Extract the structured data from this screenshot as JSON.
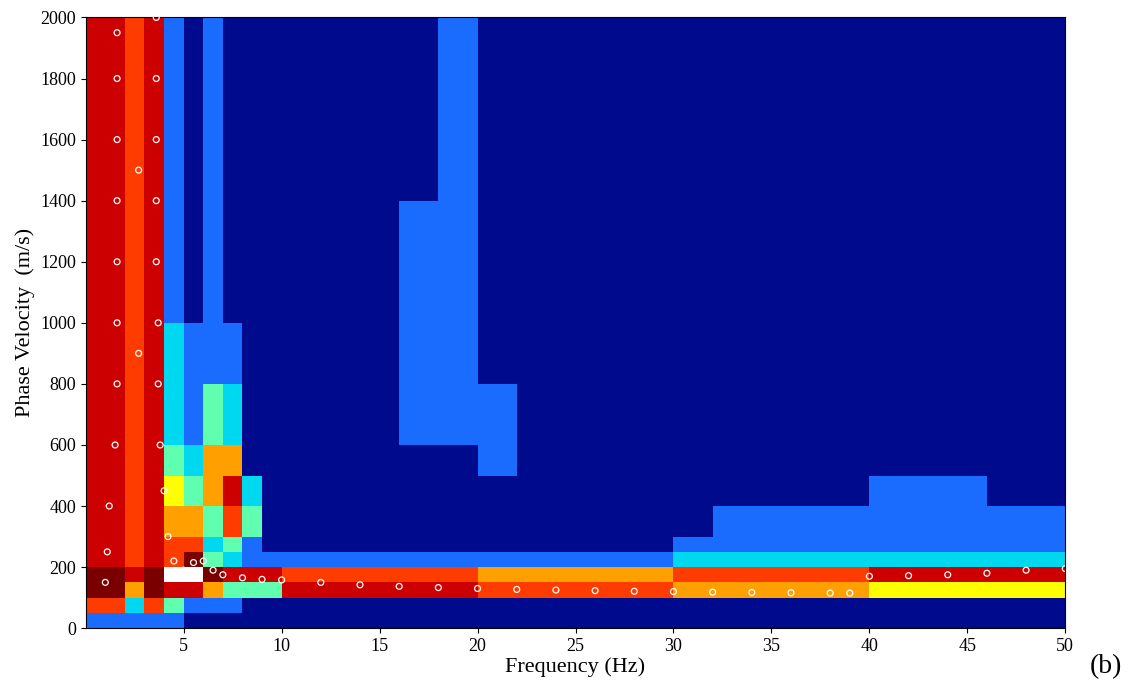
{
  "chart_data": {
    "type": "heatmap",
    "x_label": "Frequency (Hz)",
    "y_label": "Phase Velocity  (m/s)",
    "annotations": [
      {
        "text": "(b)"
      }
    ],
    "xlim": [
      0,
      50
    ],
    "ylim": [
      0,
      2000
    ],
    "xticks": [
      5,
      10,
      15,
      20,
      25,
      30,
      35,
      40,
      45,
      50
    ],
    "yticks": [
      0,
      200,
      400,
      600,
      800,
      1000,
      1200,
      1400,
      1600,
      1800,
      2000
    ],
    "grid": false,
    "heatmap": {
      "x_edges": [
        0,
        1,
        2,
        3,
        4,
        5,
        6,
        7,
        8,
        9,
        10,
        12,
        14,
        16,
        18,
        20,
        22,
        24,
        26,
        28,
        30,
        32,
        34,
        36,
        38,
        40,
        42,
        44,
        46,
        48,
        50
      ],
      "y_edges": [
        0,
        50,
        100,
        150,
        200,
        250,
        300,
        400,
        500,
        600,
        800,
        1000,
        1200,
        1400,
        1600,
        1800,
        2000
      ],
      "value_range": [
        0,
        9
      ],
      "cells": [
        [
          1,
          1,
          1,
          1,
          1,
          0,
          0,
          0,
          0,
          0,
          0,
          0,
          0,
          0,
          0,
          0,
          0,
          0,
          0,
          0,
          0,
          0,
          0,
          0,
          0,
          0,
          0,
          0,
          0,
          0
        ],
        [
          6,
          6,
          2,
          6,
          3,
          1,
          1,
          1,
          0,
          0,
          0,
          0,
          0,
          0,
          0,
          0,
          0,
          0,
          0,
          0,
          0,
          0,
          0,
          0,
          0,
          0,
          0,
          0,
          0,
          0
        ],
        [
          8,
          8,
          5,
          8,
          7,
          7,
          5,
          3,
          3,
          3,
          7,
          7,
          7,
          7,
          7,
          6,
          6,
          6,
          6,
          6,
          5,
          5,
          5,
          5,
          5,
          4,
          4,
          4,
          4,
          4
        ],
        [
          8,
          8,
          7,
          8,
          9,
          9,
          8,
          7,
          7,
          7,
          6,
          6,
          6,
          6,
          6,
          5,
          5,
          5,
          5,
          5,
          6,
          6,
          6,
          6,
          6,
          7,
          7,
          7,
          7,
          7
        ],
        [
          7,
          7,
          6,
          7,
          6,
          8,
          3,
          2,
          1,
          1,
          1,
          1,
          1,
          1,
          1,
          1,
          1,
          1,
          1,
          1,
          2,
          2,
          2,
          2,
          2,
          2,
          2,
          2,
          2,
          2
        ],
        [
          7,
          7,
          6,
          7,
          6,
          6,
          2,
          3,
          1,
          0,
          0,
          0,
          0,
          0,
          0,
          0,
          0,
          0,
          0,
          0,
          1,
          1,
          1,
          1,
          1,
          1,
          1,
          1,
          1,
          1
        ],
        [
          7,
          7,
          6,
          7,
          5,
          5,
          3,
          6,
          3,
          0,
          0,
          0,
          0,
          0,
          0,
          0,
          0,
          0,
          0,
          0,
          0,
          1,
          1,
          1,
          1,
          1,
          1,
          1,
          1,
          1
        ],
        [
          7,
          7,
          6,
          7,
          4,
          3,
          5,
          7,
          2,
          0,
          0,
          0,
          0,
          0,
          0,
          0,
          0,
          0,
          0,
          0,
          0,
          0,
          0,
          0,
          0,
          1,
          1,
          1,
          0,
          0
        ],
        [
          7,
          7,
          6,
          7,
          3,
          2,
          5,
          5,
          0,
          0,
          0,
          0,
          0,
          0,
          0,
          1,
          0,
          0,
          0,
          0,
          0,
          0,
          0,
          0,
          0,
          0,
          0,
          0,
          0,
          0
        ],
        [
          7,
          7,
          6,
          7,
          2,
          1,
          3,
          2,
          0,
          0,
          0,
          0,
          0,
          1,
          1,
          1,
          0,
          0,
          0,
          0,
          0,
          0,
          0,
          0,
          0,
          0,
          0,
          0,
          0,
          0
        ],
        [
          7,
          7,
          6,
          7,
          2,
          1,
          1,
          1,
          0,
          0,
          0,
          0,
          0,
          1,
          1,
          0,
          0,
          0,
          0,
          0,
          0,
          0,
          0,
          0,
          0,
          0,
          0,
          0,
          0,
          0
        ],
        [
          7,
          7,
          6,
          7,
          1,
          0,
          1,
          0,
          0,
          0,
          0,
          0,
          0,
          1,
          1,
          0,
          0,
          0,
          0,
          0,
          0,
          0,
          0,
          0,
          0,
          0,
          0,
          0,
          0,
          0
        ],
        [
          7,
          7,
          6,
          7,
          1,
          0,
          1,
          0,
          0,
          0,
          0,
          0,
          0,
          1,
          1,
          0,
          0,
          0,
          0,
          0,
          0,
          0,
          0,
          0,
          0,
          0,
          0,
          0,
          0,
          0
        ],
        [
          7,
          7,
          6,
          7,
          1,
          0,
          1,
          0,
          0,
          0,
          0,
          0,
          0,
          0,
          1,
          0,
          0,
          0,
          0,
          0,
          0,
          0,
          0,
          0,
          0,
          0,
          0,
          0,
          0,
          0
        ],
        [
          7,
          7,
          6,
          7,
          1,
          0,
          1,
          0,
          0,
          0,
          0,
          0,
          0,
          0,
          1,
          0,
          0,
          0,
          0,
          0,
          0,
          0,
          0,
          0,
          0,
          0,
          0,
          0,
          0,
          0
        ],
        [
          7,
          7,
          6,
          7,
          1,
          0,
          1,
          0,
          0,
          0,
          0,
          0,
          0,
          0,
          1,
          0,
          0,
          0,
          0,
          0,
          0,
          0,
          0,
          0,
          0,
          0,
          0,
          0,
          0,
          0
        ]
      ]
    },
    "picks": {
      "marker": "o",
      "color": "#ffffff",
      "x": [
        1.0,
        1.1,
        1.2,
        1.5,
        1.6,
        1.6,
        1.6,
        1.6,
        1.6,
        1.6,
        1.6,
        2.7,
        2.7,
        3.6,
        3.6,
        3.6,
        3.6,
        3.6,
        3.7,
        3.7,
        3.8,
        4.0,
        4.2,
        4.5,
        5.0,
        5.5,
        6.0,
        6.5,
        7,
        8,
        9,
        10,
        12,
        14,
        16,
        18,
        20,
        22,
        24,
        26,
        28,
        30,
        32,
        34,
        36,
        38,
        39,
        40,
        42,
        44,
        46,
        48,
        50
      ],
      "values": [
        150,
        250,
        400,
        600,
        800,
        1000,
        1200,
        1400,
        1600,
        1800,
        1950,
        900,
        1500,
        2000,
        1800,
        1600,
        1400,
        1200,
        1000,
        800,
        600,
        450,
        300,
        220,
        190,
        215,
        220,
        190,
        175,
        165,
        160,
        158,
        150,
        142,
        137,
        133,
        130,
        127,
        125,
        123,
        121,
        120,
        118,
        117,
        116,
        115,
        115,
        170,
        172,
        175,
        180,
        190,
        195
      ]
    }
  }
}
